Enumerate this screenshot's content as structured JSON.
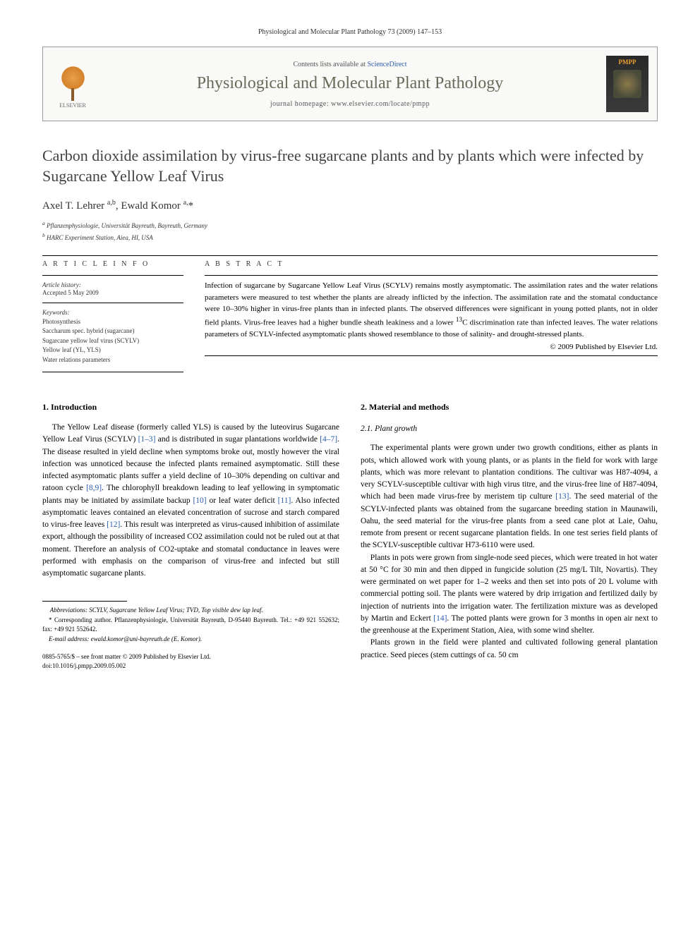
{
  "runningHead": "Physiological and Molecular Plant Pathology 73 (2009) 147–153",
  "header": {
    "contentsPrefix": "Contents lists available at ",
    "contentsLink": "ScienceDirect",
    "journalName": "Physiological and Molecular Plant Pathology",
    "homepage": "journal homepage: www.elsevier.com/locate/pmpp",
    "publisherName": "ELSEVIER",
    "coverLabel": "PMPP"
  },
  "title": "Carbon dioxide assimilation by virus-free sugarcane plants and by plants which were infected by Sugarcane Yellow Leaf Virus",
  "authors": "Axel T. Lehrer a,b, Ewald Komor a,*",
  "affiliations": {
    "a": "a Pflanzenphysiologie, Universität Bayreuth, Bayreuth, Germany",
    "b": "b HARC Experiment Station, Aiea, HI, USA"
  },
  "articleInfo": {
    "heading": "A R T I C L E   I N F O",
    "historyLabel": "Article history:",
    "history": "Accepted 5 May 2009",
    "keywordsLabel": "Keywords:",
    "keywords": "Photosynthesis\nSaccharum spec. hybrid (sugarcane)\nSugarcane yellow leaf virus (SCYLV)\nYellow leaf (YL, YLS)\nWater relations parameters"
  },
  "abstract": {
    "heading": "A B S T R A C T",
    "text": "Infection of sugarcane by Sugarcane Yellow Leaf Virus (SCYLV) remains mostly asymptomatic. The assimilation rates and the water relations parameters were measured to test whether the plants are already inflicted by the infection. The assimilation rate and the stomatal conductance were 10–30% higher in virus-free plants than in infected plants. The observed differences were significant in young potted plants, not in older field plants. Virus-free leaves had a higher bundle sheath leakiness and a lower 13C discrimination rate than infected leaves. The water relations parameters of SCYLV-infected asymptomatic plants showed resemblance to those of salinity- and drought-stressed plants.",
    "copyright": "© 2009 Published by Elsevier Ltd."
  },
  "sections": {
    "intro": {
      "heading": "1.  Introduction",
      "p1a": "The Yellow Leaf disease (formerly called YLS) is caused by the luteovirus Sugarcane Yellow Leaf Virus (SCYLV) ",
      "ref1": "[1–3]",
      "p1b": " and is distributed in sugar plantations worldwide ",
      "ref2": "[4–7]",
      "p1c": ". The disease resulted in yield decline when symptoms broke out, mostly however the viral infection was unnoticed because the infected plants remained asymptomatic. Still these infected asymptomatic plants suffer a yield decline of 10–30% depending on cultivar and ratoon cycle ",
      "ref3": "[8,9]",
      "p1d": ". The chlorophyll breakdown leading to leaf yellowing in symptomatic plants may be initiated by assimilate backup ",
      "ref4": "[10]",
      "p1e": " or leaf water deficit ",
      "ref5": "[11]",
      "p1f": ". Also infected asymptomatic leaves contained an elevated concentration of sucrose and starch compared to virus-free leaves ",
      "ref6": "[12]",
      "p1g": ". This result was interpreted as virus-caused inhibition of assimilate export, although the possibility of increased CO2 assimilation could not be ruled out at that moment. Therefore an analysis of CO2-uptake and stomatal conductance in leaves were performed with emphasis on the comparison of virus-free and infected but still asymptomatic sugarcane plants."
    },
    "methods": {
      "heading": "2.  Material and methods",
      "sub1": "2.1.  Plant growth",
      "p1a": "The experimental plants were grown under two growth conditions, either as plants in pots, which allowed work with young plants, or as plants in the field for work with large plants, which was more relevant to plantation conditions. The cultivar was H87-4094, a very SCYLV-susceptible cultivar with high virus titre, and the virus-free line of H87-4094, which had been made virus-free by meristem tip culture ",
      "ref7": "[13]",
      "p1b": ". The seed material of the SCYLV-infected plants was obtained from the sugarcane breeding station in Maunawili, Oahu, the seed material for the virus-free plants from a seed cane plot at Laie, Oahu, remote from present or recent sugarcane plantation fields. In one test series field plants of the SCYLV-susceptible cultivar H73-6110 were used.",
      "p2a": "Plants in pots were grown from single-node seed pieces, which were treated in hot water at 50 °C for 30 min and then dipped in fungicide solution (25 mg/L Tilt, Novartis). They were germinated on wet paper for 1–2 weeks and then set into pots of 20 L volume with commercial potting soil. The plants were watered by drip irrigation and fertilized daily by injection of nutrients into the irrigation water. The fertilization mixture was as developed by Martin and Eckert ",
      "ref8": "[14]",
      "p2b": ". The potted plants were grown for 3 months in open air next to the greenhouse at the Experiment Station, Aiea, with some wind shelter.",
      "p3": "Plants grown in the field were planted and cultivated following general plantation practice. Seed pieces (stem cuttings of ca. 50 cm"
    }
  },
  "footnotes": {
    "abbrev": "Abbreviations: SCYLV, Sugarcane Yellow Leaf Virus; TVD, Top visible dew lap leaf.",
    "corr": "* Corresponding author. Pflanzenphysiologie, Universität Bayreuth, D-95440 Bayreuth. Tel.: +49 921 552632; fax: +49 921 552642.",
    "email": "E-mail address: ewald.komor@uni-bayreuth.de (E. Komor)."
  },
  "doi": {
    "line1": "0885-5765/$ – see front matter © 2009 Published by Elsevier Ltd.",
    "line2": "doi:10.1016/j.pmpp.2009.05.002"
  }
}
